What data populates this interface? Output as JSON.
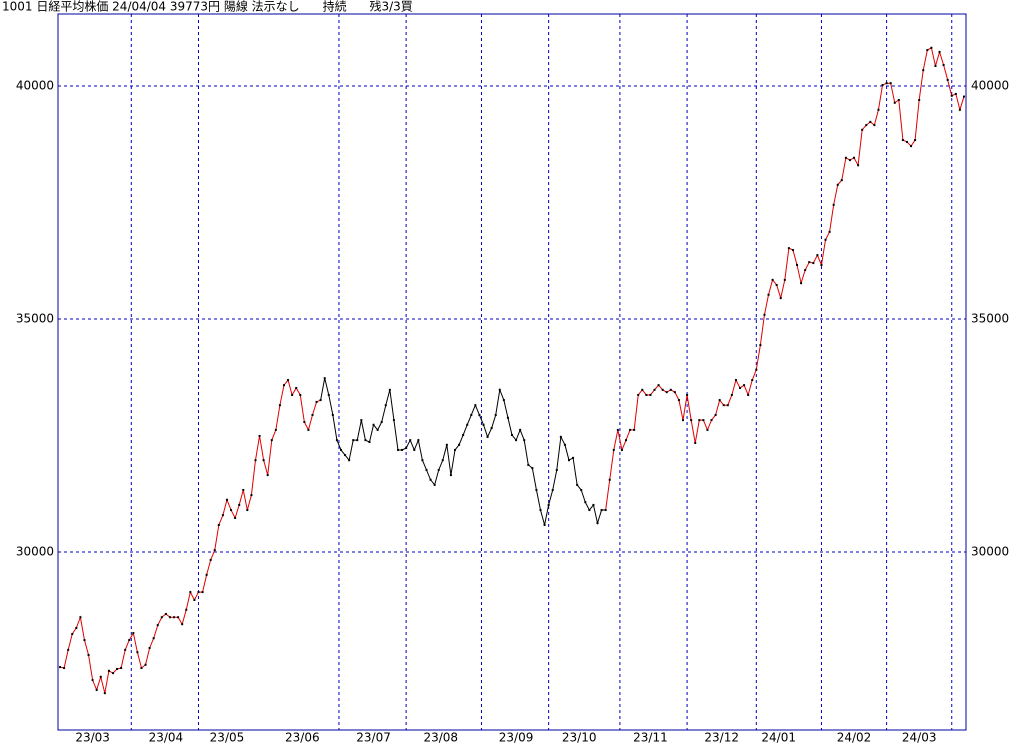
{
  "chart_data": {
    "type": "line",
    "title": "1001 日経平均株価 24/04/04 39773円 陽線 法示なし      持続      残3/3買",
    "values": [
      27530,
      27510,
      27900,
      28240,
      28370,
      28600,
      28110,
      27790,
      27250,
      27040,
      27320,
      26970,
      27450,
      27400,
      27490,
      27510,
      27900,
      28110,
      28260,
      27850,
      27510,
      27580,
      27940,
      28150,
      28430,
      28600,
      28670,
      28600,
      28600,
      28600,
      28450,
      28760,
      29140,
      28970,
      29140,
      29140,
      29510,
      29830,
      30040,
      30580,
      30790,
      31120,
      30900,
      30730,
      31010,
      31330,
      30900,
      31220,
      31970,
      32490,
      31970,
      31650,
      32400,
      32620,
      33150,
      33580,
      33690,
      33370,
      33520,
      33370,
      32790,
      32620,
      32940,
      33220,
      33260,
      33730,
      33370,
      32940,
      32400,
      32190,
      32080,
      31970,
      32400,
      32400,
      32830,
      32400,
      32360,
      32730,
      32620,
      32790,
      33150,
      33480,
      32830,
      32190,
      32190,
      32230,
      32400,
      32190,
      32400,
      31970,
      31760,
      31550,
      31440,
      31760,
      31970,
      32300,
      31650,
      32190,
      32300,
      32510,
      32730,
      32940,
      33150,
      32940,
      32730,
      32470,
      32660,
      32940,
      33480,
      33260,
      32880,
      32510,
      32400,
      32620,
      32400,
      31870,
      31800,
      31330,
      30900,
      30580,
      31010,
      31330,
      31760,
      32470,
      32300,
      31970,
      32020,
      31440,
      31330,
      31070,
      30900,
      31010,
      30620,
      30900,
      30900,
      31550,
      32190,
      32620,
      32190,
      32400,
      32620,
      32620,
      33370,
      33480,
      33370,
      33370,
      33480,
      33580,
      33480,
      33430,
      33480,
      33430,
      33260,
      32830,
      33370,
      32830,
      32340,
      32830,
      32830,
      32620,
      32830,
      32940,
      33260,
      33150,
      33150,
      33370,
      33690,
      33520,
      33580,
      33370,
      33690,
      33910,
      34440,
      35090,
      35520,
      35840,
      35730,
      35450,
      35840,
      36520,
      36480,
      36160,
      35770,
      36050,
      36220,
      36200,
      36370,
      36160,
      36700,
      36870,
      37450,
      37880,
      37980,
      38460,
      38410,
      38460,
      38300,
      39060,
      39160,
      39230,
      39160,
      39490,
      40020,
      40060,
      40060,
      39640,
      39700,
      38840,
      38800,
      38710,
      38840,
      39700,
      40340,
      40770,
      40820,
      40430,
      40730,
      40450,
      40130,
      39790,
      39830,
      39490,
      39773
    ],
    "color_runs": [
      {
        "start": 0,
        "color": "#e00000"
      },
      {
        "start": 64,
        "color": "#000000"
      },
      {
        "start": 134,
        "color": "#e00000"
      }
    ],
    "point_color": "#000000",
    "xlim": [
      -0.5,
      222.5
    ],
    "xticks": [
      {
        "value": 8,
        "label": "23/03"
      },
      {
        "value": 26,
        "label": "23/04"
      },
      {
        "value": 41,
        "label": "23/05"
      },
      {
        "value": 59.5,
        "label": "23/06"
      },
      {
        "value": 77,
        "label": "23/07"
      },
      {
        "value": 93.5,
        "label": "23/08"
      },
      {
        "value": 112,
        "label": "23/09"
      },
      {
        "value": 127.5,
        "label": "23/10"
      },
      {
        "value": 145,
        "label": "23/11"
      },
      {
        "value": 162.5,
        "label": "23/12"
      },
      {
        "value": 176.5,
        "label": "24/01"
      },
      {
        "value": 195,
        "label": "24/02"
      },
      {
        "value": 211,
        "label": "24/03"
      }
    ],
    "vlines": [
      17.5,
      34,
      68.5,
      85,
      103.5,
      120,
      137.5,
      154,
      171,
      187,
      203,
      219
    ],
    "ylim": [
      26180,
      41545
    ],
    "yticks": [
      30000,
      35000,
      40000
    ],
    "grid": true,
    "grid_color": "#0000c0",
    "frame_color": "#0000a0"
  }
}
